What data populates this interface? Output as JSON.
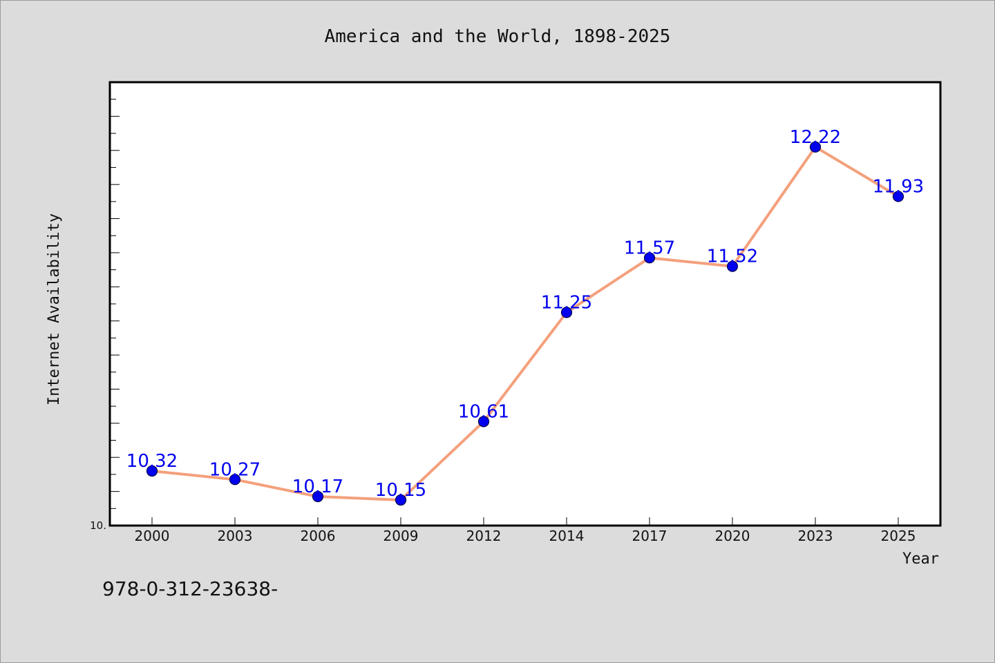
{
  "chart_data": {
    "type": "line",
    "title": "America and the World, 1898-2025",
    "xlabel": "Year",
    "ylabel": "Internet Availability",
    "categories": [
      "2000",
      "2003",
      "2006",
      "2009",
      "2012",
      "2014",
      "2017",
      "2020",
      "2023",
      "2025"
    ],
    "series": [
      {
        "values": [
          10.32,
          10.27,
          10.17,
          10.15,
          10.61,
          11.25,
          11.57,
          11.52,
          12.22,
          11.93
        ],
        "data_labels": [
          "10.32",
          "10.27",
          "10.17",
          "10.15",
          "10.61",
          "11.25",
          "11.57",
          "11.52",
          "12.22",
          "11.93"
        ],
        "line_color": "#f4a07c",
        "marker_color": "#0000ee",
        "label_color": "#0000ee"
      }
    ],
    "ylim": [
      10.0,
      12.6
    ],
    "ytick_label": "10.",
    "grid": false,
    "legend": "none",
    "plot_background": "#ffffff",
    "figure_background": "#dcdcdc"
  },
  "footer_text": "978-0-312-23638-"
}
